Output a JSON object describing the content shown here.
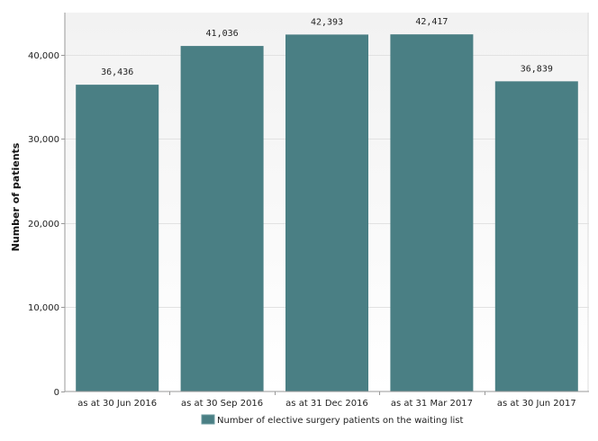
{
  "chart_data": {
    "type": "bar",
    "categories": [
      "as at 30 Jun 2016",
      "as at 30 Sep 2016",
      "as at 31 Dec 2016",
      "as at 31 Mar 2017",
      "as at 30 Jun 2017"
    ],
    "series": [
      {
        "name": "Number of elective surgery patients on the waiting list",
        "values": [
          36436,
          41036,
          42393,
          42417,
          36839
        ],
        "labels": [
          "36,436",
          "41,036",
          "42,393",
          "42,417",
          "36,839"
        ],
        "color": "#4a7f84"
      }
    ],
    "ylabel": "Number of patients",
    "xlabel": "",
    "ylim": [
      0,
      45000
    ],
    "yticks": [
      0,
      10000,
      20000,
      30000,
      40000
    ],
    "ytick_labels": [
      "0",
      "10,000",
      "20,000",
      "30,000",
      "40,000"
    ],
    "grid": true,
    "legend": "bottom-center"
  }
}
